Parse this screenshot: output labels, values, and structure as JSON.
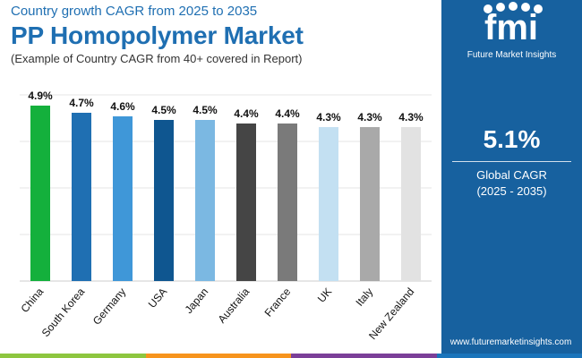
{
  "header": {
    "subtitle": "Country growth CAGR from 2025 to 2035",
    "title": "PP Homopolymer Market",
    "caption": "(Example of Country CAGR from 40+ covered in Report)"
  },
  "chart_data": {
    "type": "bar",
    "title": "PP Homopolymer Market",
    "subtitle": "Country growth CAGR from 2025 to 2035",
    "categories": [
      "China",
      "South Korea",
      "Germany",
      "USA",
      "Japan",
      "Australia",
      "France",
      "UK",
      "Italy",
      "New Zealand"
    ],
    "values": [
      4.9,
      4.7,
      4.6,
      4.5,
      4.5,
      4.4,
      4.4,
      4.3,
      4.3,
      4.3
    ],
    "labels": [
      "4.9%",
      "4.7%",
      "4.6%",
      "4.5%",
      "4.5%",
      "4.4%",
      "4.4%",
      "4.3%",
      "4.3%",
      "4.3%"
    ],
    "colors": [
      "#14b03c",
      "#1f6fb2",
      "#3f97d8",
      "#0f5690",
      "#7bb8e2",
      "#454545",
      "#7a7a7a",
      "#c3e0f2",
      "#a9a9a9",
      "#e2e2e2"
    ],
    "ylim": [
      0,
      5.2
    ],
    "gridlines": [
      1.3,
      2.6,
      3.9,
      5.2
    ],
    "xlabel": "",
    "ylabel": "",
    "grid": true
  },
  "side_panel": {
    "brand": "fmi",
    "brand_name": "Future Market Insights",
    "stat_value": "5.1%",
    "stat_label_line1": "Global CAGR",
    "stat_label_line2": "(2025 - 2035)",
    "website": "www.futuremarketinsights.com",
    "background": "#17619f"
  },
  "footer": {
    "segments": [
      "#8dc63f",
      "#f7941d",
      "#7b3f98",
      "#1b75bb"
    ]
  }
}
